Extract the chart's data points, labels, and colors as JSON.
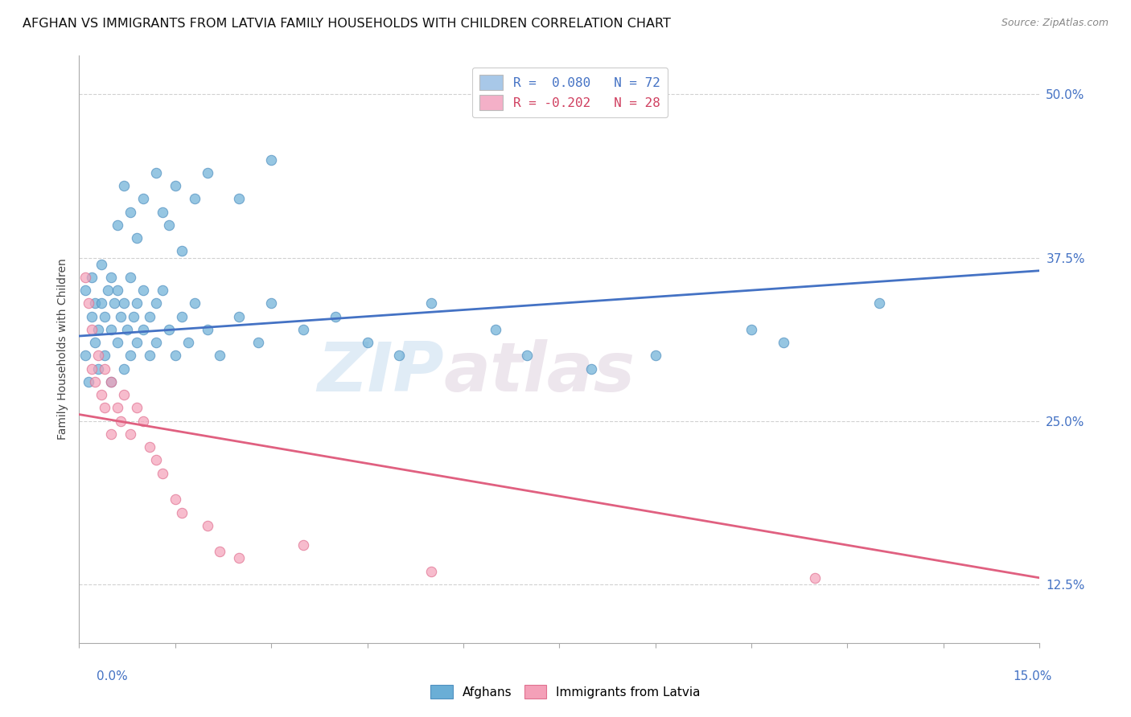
{
  "title": "AFGHAN VS IMMIGRANTS FROM LATVIA FAMILY HOUSEHOLDS WITH CHILDREN CORRELATION CHART",
  "source": "Source: ZipAtlas.com",
  "ylabel": "Family Households with Children",
  "ytick_labels": [
    "12.5%",
    "25.0%",
    "37.5%",
    "50.0%"
  ],
  "ytick_values": [
    12.5,
    25.0,
    37.5,
    50.0
  ],
  "xmin": 0.0,
  "xmax": 15.0,
  "ymin": 8.0,
  "ymax": 53.0,
  "legend_entries": [
    {
      "label": "R =  0.080   N = 72",
      "color": "#a8c8e8",
      "text_color": "#4472c4"
    },
    {
      "label": "R = -0.202   N = 28",
      "color": "#f4b0c8",
      "text_color": "#d04060"
    }
  ],
  "blue_scatter_x": [
    0.1,
    0.1,
    0.15,
    0.2,
    0.2,
    0.25,
    0.25,
    0.3,
    0.3,
    0.35,
    0.35,
    0.4,
    0.4,
    0.45,
    0.5,
    0.5,
    0.5,
    0.55,
    0.6,
    0.6,
    0.65,
    0.7,
    0.7,
    0.75,
    0.8,
    0.8,
    0.85,
    0.9,
    0.9,
    1.0,
    1.0,
    1.1,
    1.1,
    1.2,
    1.2,
    1.3,
    1.4,
    1.5,
    1.6,
    1.7,
    1.8,
    2.0,
    2.2,
    2.5,
    2.8,
    3.0,
    3.5,
    4.0,
    4.5,
    5.0,
    5.5,
    6.5,
    7.0,
    8.0,
    9.0,
    10.5,
    11.0,
    12.5,
    1.3,
    1.5,
    2.0,
    2.5,
    3.0,
    0.6,
    0.7,
    0.8,
    0.9,
    1.0,
    1.2,
    1.4,
    1.6,
    1.8
  ],
  "blue_scatter_y": [
    30.0,
    35.0,
    28.0,
    33.0,
    36.0,
    31.0,
    34.0,
    32.0,
    29.0,
    34.0,
    37.0,
    30.0,
    33.0,
    35.0,
    28.0,
    32.0,
    36.0,
    34.0,
    31.0,
    35.0,
    33.0,
    29.0,
    34.0,
    32.0,
    30.0,
    36.0,
    33.0,
    31.0,
    34.0,
    35.0,
    32.0,
    30.0,
    33.0,
    34.0,
    31.0,
    35.0,
    32.0,
    30.0,
    33.0,
    31.0,
    34.0,
    32.0,
    30.0,
    33.0,
    31.0,
    34.0,
    32.0,
    33.0,
    31.0,
    30.0,
    34.0,
    32.0,
    30.0,
    29.0,
    30.0,
    32.0,
    31.0,
    34.0,
    41.0,
    43.0,
    44.0,
    42.0,
    45.0,
    40.0,
    43.0,
    41.0,
    39.0,
    42.0,
    44.0,
    40.0,
    38.0,
    42.0
  ],
  "pink_scatter_x": [
    0.1,
    0.15,
    0.2,
    0.2,
    0.25,
    0.3,
    0.35,
    0.4,
    0.4,
    0.5,
    0.5,
    0.6,
    0.65,
    0.7,
    0.8,
    0.9,
    1.0,
    1.1,
    1.2,
    1.3,
    1.5,
    1.6,
    2.0,
    2.2,
    2.5,
    3.5,
    5.5,
    11.5
  ],
  "pink_scatter_y": [
    36.0,
    34.0,
    29.0,
    32.0,
    28.0,
    30.0,
    27.0,
    29.0,
    26.0,
    28.0,
    24.0,
    26.0,
    25.0,
    27.0,
    24.0,
    26.0,
    25.0,
    23.0,
    22.0,
    21.0,
    19.0,
    18.0,
    17.0,
    15.0,
    14.5,
    15.5,
    13.5,
    13.0
  ],
  "blue_line_x": [
    0.0,
    15.0
  ],
  "blue_line_y": [
    31.5,
    36.5
  ],
  "pink_line_x": [
    0.0,
    15.0
  ],
  "pink_line_y": [
    25.5,
    13.0
  ],
  "blue_color": "#6aaed6",
  "blue_edge_color": "#5090c0",
  "pink_color": "#f4a0b8",
  "pink_edge_color": "#e07090",
  "blue_line_color": "#4472c4",
  "pink_line_color": "#e06080",
  "grid_color": "#cccccc",
  "watermark_line1": "ZIP",
  "watermark_line2": "atlas",
  "title_fontsize": 11.5,
  "axis_label_fontsize": 10
}
